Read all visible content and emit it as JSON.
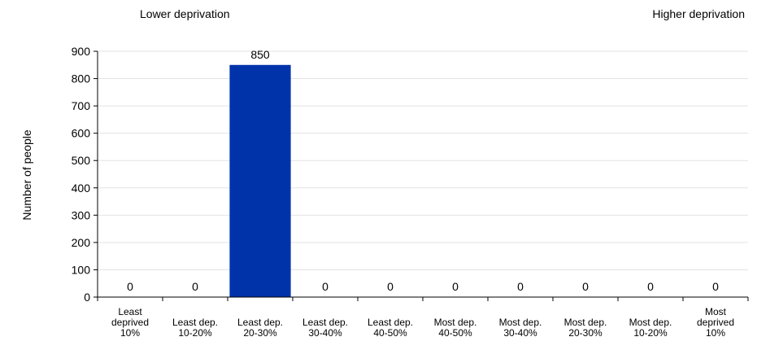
{
  "annotations": {
    "left": "Lower deprivation",
    "right": "Higher deprivation"
  },
  "chart_data": {
    "type": "bar",
    "title": "",
    "xlabel": "",
    "ylabel": "Number of people",
    "ylim": [
      0,
      900
    ],
    "yticks": [
      0,
      100,
      200,
      300,
      400,
      500,
      600,
      700,
      800,
      900
    ],
    "grid": true,
    "categories": [
      [
        "Least",
        "deprived",
        "10%"
      ],
      [
        "Least dep.",
        "10-20%"
      ],
      [
        "Least dep.",
        "20-30%"
      ],
      [
        "Least dep.",
        "30-40%"
      ],
      [
        "Least dep.",
        "40-50%"
      ],
      [
        "Most dep.",
        "40-50%"
      ],
      [
        "Most dep.",
        "30-40%"
      ],
      [
        "Most dep.",
        "20-30%"
      ],
      [
        "Most dep.",
        "10-20%"
      ],
      [
        "Most",
        "deprived",
        "10%"
      ]
    ],
    "values": [
      0,
      0,
      850,
      0,
      0,
      0,
      0,
      0,
      0,
      0
    ],
    "data_labels": [
      "0",
      "0",
      "850",
      "0",
      "0",
      "0",
      "0",
      "0",
      "0",
      "0"
    ],
    "bar_color": "#0033AA",
    "grid_color": "#E3E3E3",
    "axis_color": "#000000"
  }
}
